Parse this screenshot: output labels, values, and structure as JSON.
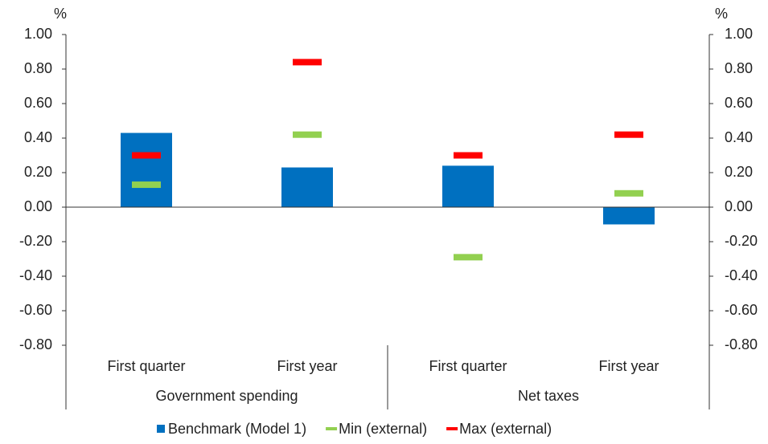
{
  "chart_data": {
    "type": "bar",
    "y_label": "%",
    "y2_label": "%",
    "categories": [
      "First quarter",
      "First year",
      "First quarter",
      "First year"
    ],
    "groups": [
      "Government spending",
      "Net taxes"
    ],
    "series": [
      {
        "name": "Benchmark (Model 1)",
        "color": "#0070c0",
        "mark": "bar",
        "values": [
          0.43,
          0.23,
          0.24,
          -0.1
        ]
      },
      {
        "name": "Min (external)",
        "color": "#92d050",
        "mark": "dash",
        "values": [
          0.13,
          0.42,
          -0.29,
          0.08
        ]
      },
      {
        "name": "Max (external)",
        "color": "#ff0000",
        "mark": "dash",
        "values": [
          0.3,
          0.84,
          0.3,
          0.42
        ]
      }
    ],
    "ylim": [
      -0.8,
      1.0
    ],
    "yticks": [
      {
        "value": 1.0,
        "label": "1.00"
      },
      {
        "value": 0.8,
        "label": "0.80"
      },
      {
        "value": 0.6,
        "label": "0.60"
      },
      {
        "value": 0.4,
        "label": "0.40"
      },
      {
        "value": 0.2,
        "label": "0.20"
      },
      {
        "value": 0,
        "label": "0.00"
      },
      {
        "value": -0.2,
        "label": "-0.20"
      },
      {
        "value": -0.4,
        "label": "-0.40"
      },
      {
        "value": -0.6,
        "label": "-0.60"
      },
      {
        "value": -0.8,
        "label": "-0.80"
      }
    ],
    "y2lim": [
      -0.8,
      1.0
    ],
    "y2ticks": [
      {
        "value": 1.0,
        "label": "1.00"
      },
      {
        "value": 0.8,
        "label": "0.80"
      },
      {
        "value": 0.6,
        "label": "0.60"
      },
      {
        "value": 0.4,
        "label": "0.40"
      },
      {
        "value": 0.2,
        "label": "0.20"
      },
      {
        "value": 0,
        "label": "0.00"
      },
      {
        "value": -0.2,
        "label": "-0.20"
      },
      {
        "value": -0.4,
        "label": "-0.40"
      },
      {
        "value": -0.6,
        "label": "-0.60"
      },
      {
        "value": -0.8,
        "label": "-0.80"
      }
    ],
    "grid": false,
    "legend": "bottom"
  }
}
